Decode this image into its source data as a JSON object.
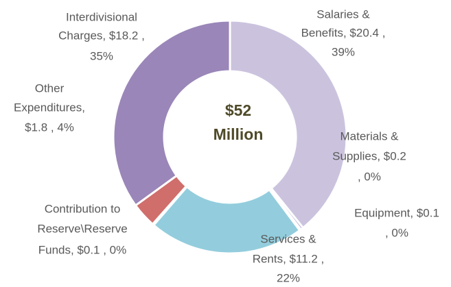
{
  "chart_data": {
    "type": "donut",
    "center_text": [
      "$52",
      "Million"
    ],
    "values": [
      20.4,
      0.2,
      0.1,
      11.2,
      0.1,
      1.8,
      18.2
    ],
    "data_labels": [
      [
        "Salaries &",
        "Benefits,  $20.4 ,",
        "39%"
      ],
      [
        "Materials &",
        "Supplies,  $0.2",
        ", 0%"
      ],
      [
        "Equipment,  $0.1",
        ", 0%"
      ],
      [
        "Services &",
        "Rents,  $11.2 ,",
        "22%"
      ],
      [
        "Contribution to",
        "Reserve\\Reserve",
        "Funds,  $0.1 , 0%"
      ],
      [
        "Other",
        "Expenditures,",
        "$1.8 , 4%"
      ],
      [
        "Interdivisional",
        "Charges,  $18.2 ,",
        "35%"
      ]
    ],
    "colors": [
      "#cbc3de",
      "#b6a9cf",
      "#a99bc7",
      "#93cddd",
      "#c0504d",
      "#d06e6c",
      "#9a86b8"
    ]
  }
}
